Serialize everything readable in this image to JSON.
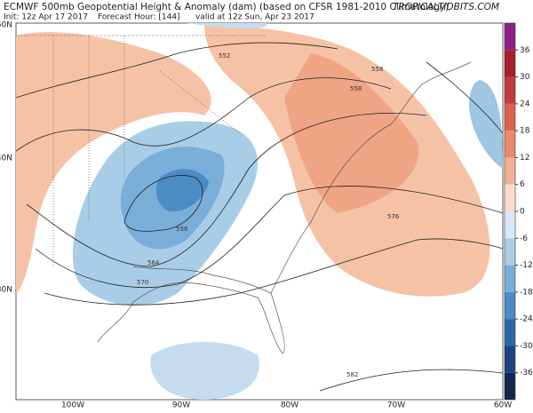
{
  "header": {
    "title": "ECMWF 500mb Geopotential Height & Anomaly (dam) (based on CFSR 1981-2010 Climatology)",
    "site": "TROPICALTIDBITS.COM",
    "init": "Init: 12z Apr 17 2017",
    "forecast_hour": "Forecast Hour: [144]",
    "valid": "valid at 12z Sun, Apr 23 2017"
  },
  "map": {
    "lat_labels": [
      "50N",
      "40N",
      "30N"
    ],
    "lon_labels": [
      "100W",
      "90W",
      "80W",
      "70W",
      "60W"
    ],
    "contour_labels": [
      "552",
      "558",
      "558",
      "576",
      "558",
      "564",
      "570",
      "582"
    ]
  },
  "colorbar": {
    "lim": [
      -42,
      42
    ],
    "ticks": [
      36,
      30,
      24,
      18,
      12,
      6,
      0,
      -6,
      -12,
      -18,
      -24,
      -30,
      -36
    ],
    "colors": [
      "#8e1f86",
      "#a81d2f",
      "#c53a3a",
      "#d9634f",
      "#e98a6c",
      "#f3b193",
      "#fbdccb",
      "#dbe9f4",
      "#a9cde6",
      "#79aed8",
      "#4b8cc4",
      "#2b68a8",
      "#1d4680",
      "#12264f"
    ]
  }
}
